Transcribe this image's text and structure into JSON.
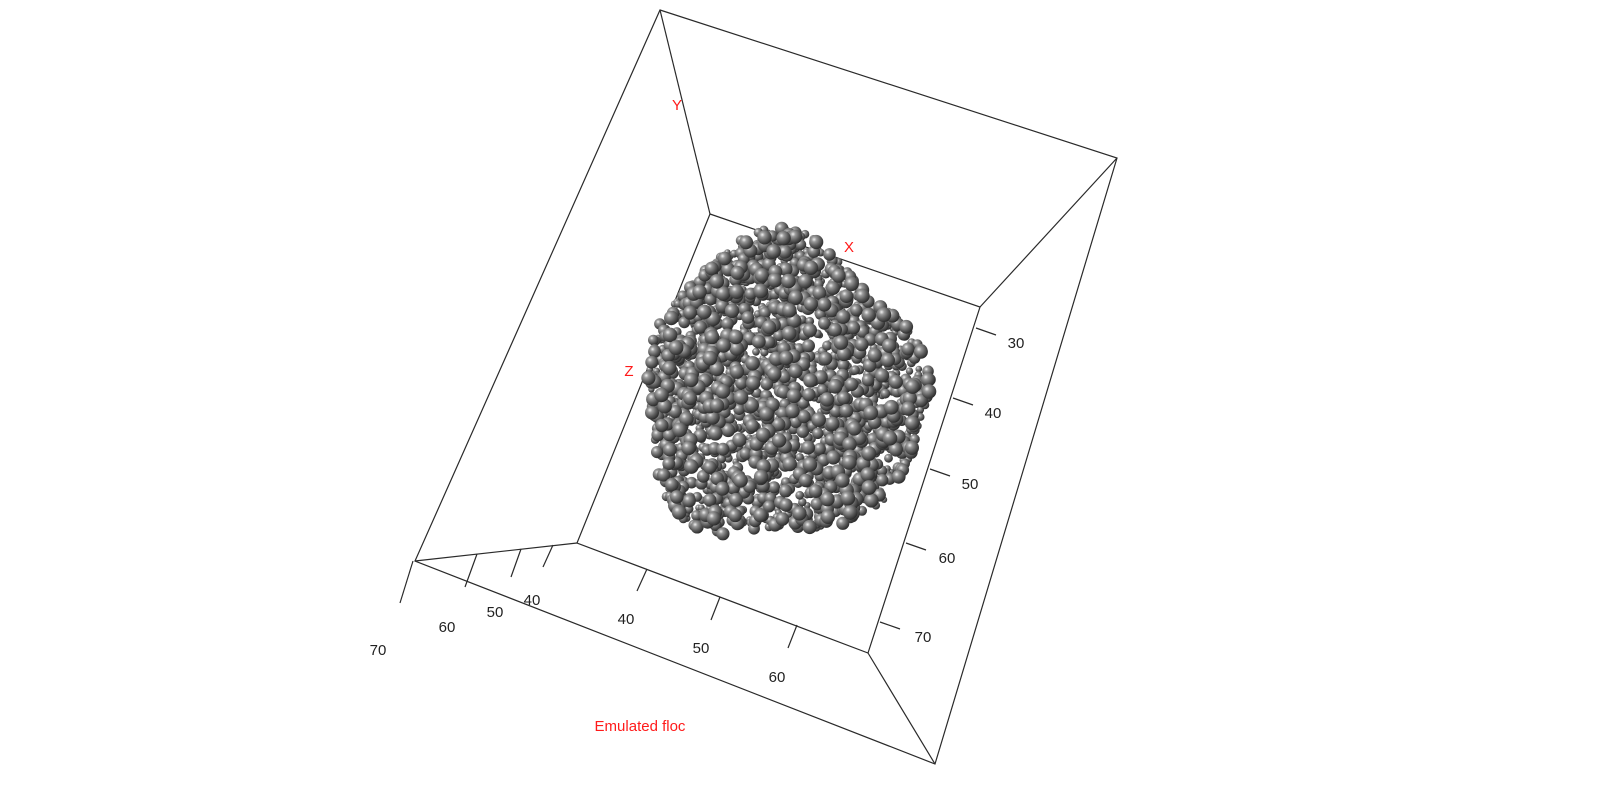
{
  "chart_data": {
    "type": "scatter",
    "title": "Emulated floc",
    "axes": {
      "x": {
        "label": "X",
        "ticks": [
          "40",
          "50",
          "60"
        ]
      },
      "y": {
        "label": "Y",
        "ticks": [
          "30",
          "40",
          "50",
          "60",
          "70"
        ]
      },
      "z": {
        "label": "Z",
        "ticks": [
          "40",
          "50",
          "60",
          "70"
        ]
      }
    },
    "series": [
      {
        "marker": "sphere",
        "color": "#5a5a5a"
      }
    ]
  },
  "colors": {
    "label": "#ff1a1a",
    "sphere_base": "#5a5a5a",
    "box": "#2a2a2a"
  }
}
